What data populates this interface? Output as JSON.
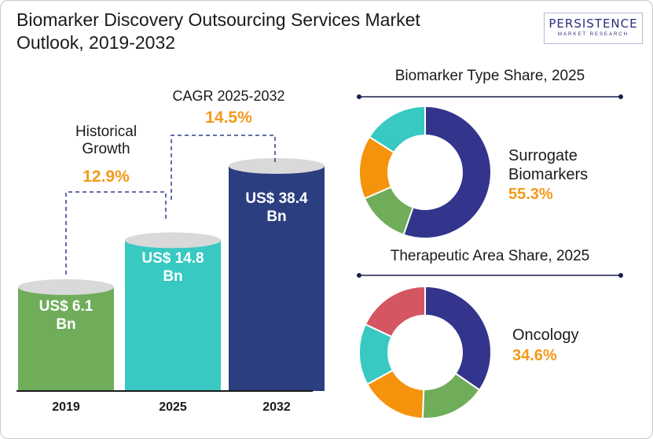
{
  "title_line1": "Biomarker Discovery Outsourcing Services Market",
  "title_line2": "Outlook, 2019-2032",
  "logo": {
    "brand": "PERSISTENCE",
    "sub": "MARKET RESEARCH"
  },
  "annotations": {
    "historical_line1": "Historical",
    "historical_line2": "Growth",
    "historical_value": "12.9%",
    "cagr_label": "CAGR 2025-2032",
    "cagr_value": "14.5%"
  },
  "colors": {
    "green": "#6fad5b",
    "teal": "#37c9c2",
    "navy": "#2b3e80",
    "purple": "#33348c",
    "orange": "#f5930d",
    "red": "#d55663",
    "accent": "#f29a1b"
  },
  "chart_data": [
    {
      "type": "bar",
      "categories": [
        "2019",
        "2025",
        "2032"
      ],
      "values": [
        6.1,
        14.8,
        38.4
      ],
      "value_labels": [
        [
          "US$ 6.1",
          "Bn"
        ],
        [
          "US$ 14.8",
          "Bn"
        ],
        [
          "US$ 38.4",
          "Bn"
        ]
      ],
      "colors": [
        "#6fad5b",
        "#37c9c2",
        "#2b3e80"
      ]
    },
    {
      "type": "pie",
      "title": "Biomarker Type Share, 2025",
      "highlight_label": [
        "Surrogate",
        "Biomarkers"
      ],
      "highlight_value": "55.3%",
      "slices": [
        {
          "value": 55.3,
          "color": "#33348c"
        },
        {
          "value": 13.2,
          "color": "#6fad5b"
        },
        {
          "value": 15.5,
          "color": "#f5930d"
        },
        {
          "value": 16.0,
          "color": "#37c9c2"
        }
      ]
    },
    {
      "type": "pie",
      "title": "Therapeutic Area Share, 2025",
      "highlight_label": [
        "Oncology"
      ],
      "highlight_value": "34.6%",
      "slices": [
        {
          "value": 34.6,
          "color": "#33348c"
        },
        {
          "value": 16.0,
          "color": "#6fad5b"
        },
        {
          "value": 16.4,
          "color": "#f5930d"
        },
        {
          "value": 15.0,
          "color": "#37c9c2"
        },
        {
          "value": 18.0,
          "color": "#d55663"
        }
      ]
    }
  ]
}
